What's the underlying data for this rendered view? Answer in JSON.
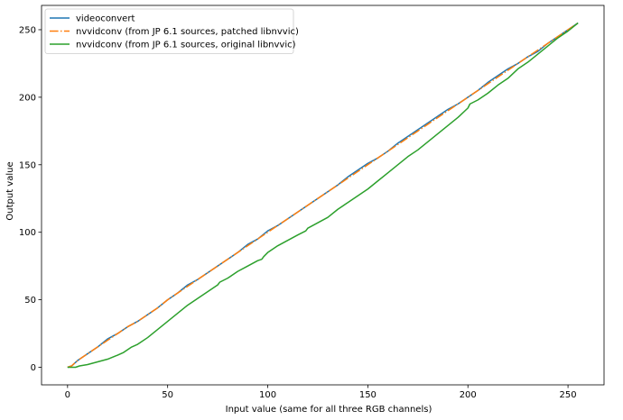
{
  "chart_data": {
    "type": "line",
    "title": "",
    "xlabel": "Input value (same for all three RGB channels)",
    "ylabel": "Output value",
    "xlim": [
      -13,
      268
    ],
    "ylim": [
      -13,
      268
    ],
    "xticks": [
      0,
      50,
      100,
      150,
      200,
      250
    ],
    "yticks": [
      0,
      50,
      100,
      150,
      200,
      250
    ],
    "grid": false,
    "legend_position": "upper-left",
    "series": [
      {
        "name": "videoconvert",
        "color": "#1f77b4",
        "style": "solid",
        "x": [
          0,
          2,
          5,
          8,
          10,
          15,
          20,
          25,
          30,
          35,
          40,
          45,
          50,
          55,
          60,
          65,
          70,
          75,
          80,
          85,
          90,
          95,
          100,
          105,
          110,
          115,
          120,
          125,
          130,
          135,
          140,
          145,
          150,
          155,
          160,
          165,
          170,
          175,
          180,
          185,
          190,
          195,
          200,
          205,
          210,
          215,
          220,
          225,
          230,
          235,
          240,
          245,
          250,
          255
        ],
        "y": [
          0,
          1,
          5,
          8,
          10,
          15,
          21,
          25,
          30,
          34,
          39,
          44,
          50,
          55,
          61,
          65,
          70,
          75,
          80,
          85,
          91,
          95,
          101,
          105,
          110,
          115,
          120,
          125,
          130,
          135,
          141,
          146,
          151,
          155,
          160,
          166,
          171,
          176,
          181,
          186,
          191,
          195,
          200,
          205,
          211,
          216,
          221,
          225,
          230,
          234,
          240,
          245,
          250,
          255
        ]
      },
      {
        "name": "nvvidconv (from JP 6.1 sources, patched libnvvic)",
        "color": "#ff7f0e",
        "style": "dashdot",
        "x": [
          0,
          2,
          5,
          8,
          10,
          15,
          20,
          25,
          30,
          35,
          40,
          45,
          50,
          55,
          60,
          65,
          70,
          75,
          80,
          85,
          90,
          95,
          100,
          105,
          110,
          115,
          120,
          125,
          130,
          135,
          140,
          145,
          150,
          155,
          160,
          165,
          170,
          175,
          180,
          185,
          190,
          195,
          200,
          205,
          210,
          215,
          220,
          225,
          230,
          235,
          240,
          245,
          250,
          255
        ],
        "y": [
          0,
          1,
          5,
          8,
          10,
          15,
          20,
          25,
          30,
          34,
          39,
          44,
          50,
          55,
          60,
          65,
          70,
          75,
          80,
          85,
          90,
          95,
          100,
          105,
          110,
          115,
          120,
          125,
          130,
          135,
          140,
          145,
          150,
          155,
          160,
          165,
          170,
          175,
          180,
          185,
          190,
          195,
          200,
          205,
          210,
          215,
          220,
          225,
          230,
          235,
          240,
          245,
          250,
          255
        ]
      },
      {
        "name": "nvvidconv (from JP 6.1 sources, original libnvvic)",
        "color": "#2ca02c",
        "style": "solid",
        "x": [
          0,
          4,
          6,
          10,
          15,
          20,
          25,
          28,
          30,
          32,
          35,
          40,
          45,
          50,
          55,
          60,
          65,
          70,
          75,
          76,
          80,
          85,
          90,
          95,
          97,
          98,
          100,
          105,
          110,
          115,
          119,
          120,
          125,
          130,
          135,
          140,
          145,
          150,
          155,
          160,
          165,
          170,
          175,
          180,
          185,
          190,
          195,
          200,
          201,
          205,
          210,
          215,
          220,
          225,
          230,
          235,
          240,
          245,
          250,
          255
        ],
        "y": [
          0,
          0,
          1,
          2,
          4,
          6,
          9,
          11,
          13,
          15,
          17,
          22,
          28,
          34,
          40,
          46,
          51,
          56,
          61,
          63,
          66,
          71,
          75,
          79,
          80,
          82,
          85,
          90,
          94,
          98,
          101,
          103,
          107,
          111,
          117,
          122,
          127,
          132,
          138,
          144,
          150,
          156,
          161,
          167,
          173,
          179,
          185,
          192,
          195,
          198,
          203,
          209,
          214,
          221,
          226,
          232,
          238,
          244,
          249,
          255
        ]
      }
    ]
  }
}
